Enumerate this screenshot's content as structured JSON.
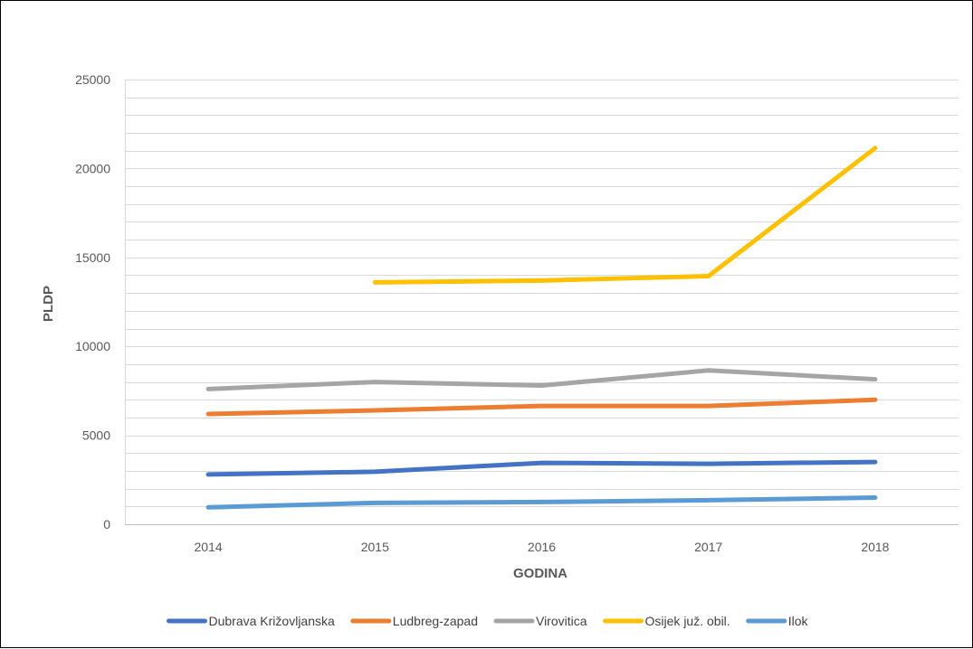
{
  "chart_data": {
    "type": "line",
    "x": [
      "2014",
      "2015",
      "2016",
      "2017",
      "2018"
    ],
    "series": [
      {
        "name": "Dubrava Križovljanska",
        "color": "#4472C4",
        "values": [
          2800,
          2950,
          3450,
          3400,
          3500
        ]
      },
      {
        "name": "Ludbreg-zapad",
        "color": "#ED7D31",
        "values": [
          6200,
          6400,
          6650,
          6650,
          7000
        ]
      },
      {
        "name": "Virovitica",
        "color": "#A5A5A5",
        "values": [
          7600,
          8000,
          7800,
          8650,
          8150
        ]
      },
      {
        "name": "Osijek juž. obil.",
        "color": "#FFC000",
        "values": [
          null,
          13600,
          13700,
          13950,
          21150
        ]
      },
      {
        "name": "Ilok",
        "color": "#5B9BD5",
        "values": [
          950,
          1200,
          1250,
          1350,
          1500
        ]
      }
    ],
    "ylim": [
      0,
      25000
    ],
    "yticks": [
      "0",
      "5000",
      "10000",
      "15000",
      "20000",
      "25000"
    ],
    "minor_grid_step": 1000,
    "grid": true,
    "xlabel": "GODINA",
    "ylabel": "PLDP",
    "legend_position": "bottom"
  }
}
